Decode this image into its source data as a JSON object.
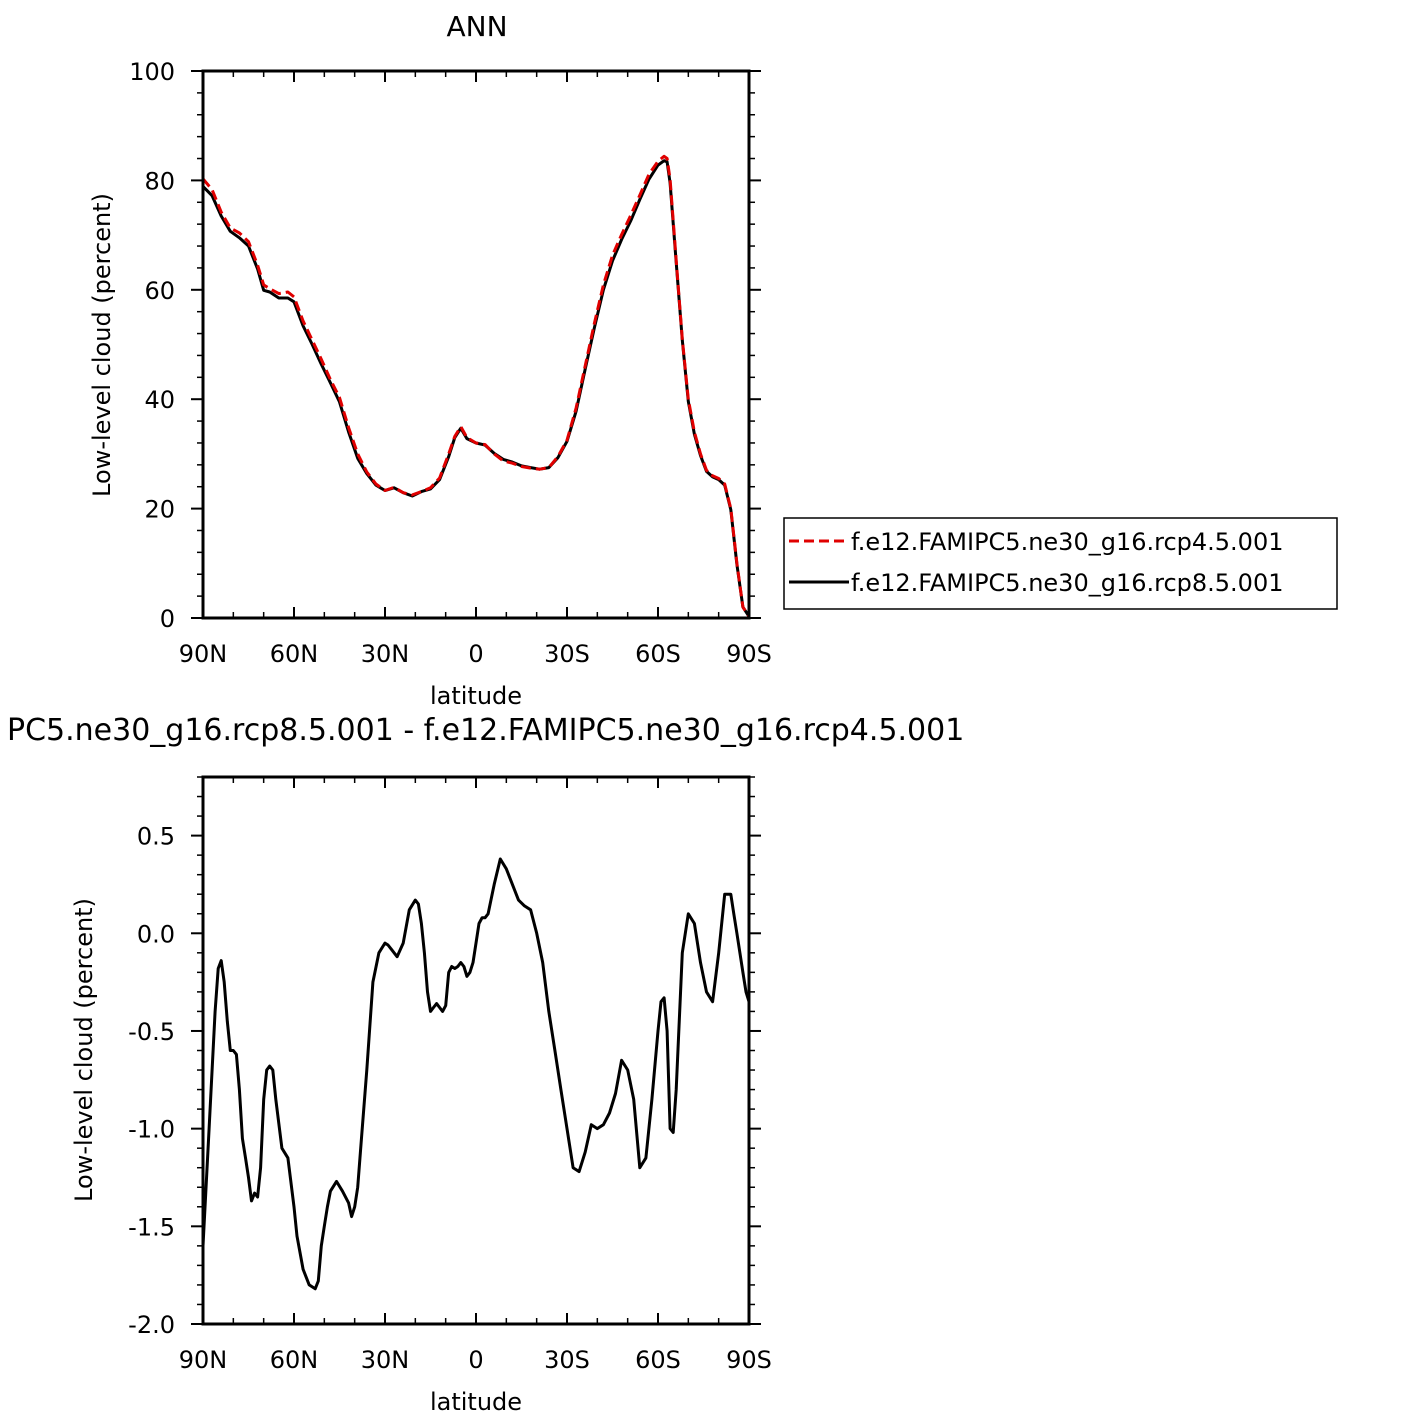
{
  "chart_data": [
    {
      "type": "line",
      "title": "ANN",
      "xlabel": "latitude",
      "ylabel": "Low-level cloud (percent)",
      "xlim": [
        90,
        -90
      ],
      "ylim": [
        0,
        100
      ],
      "x_ticks": [
        90,
        60,
        30,
        0,
        -30,
        -60,
        -90
      ],
      "x_tick_labels": [
        "90N",
        "60N",
        "30N",
        "0",
        "30S",
        "60S",
        "90S"
      ],
      "y_ticks": [
        0,
        20,
        40,
        60,
        80,
        100
      ],
      "y_tick_labels": [
        "0",
        "20",
        "40",
        "60",
        "80",
        "100"
      ],
      "legend_position": "right",
      "series": [
        {
          "name": "f.e12.FAMIPC5.ne30_g16.rcp4.5.001",
          "color": "#e00000",
          "dash": "dashed",
          "x": [
            90,
            87,
            84,
            81,
            78,
            75,
            72,
            70,
            68,
            65,
            62,
            60,
            57,
            54,
            51,
            48,
            45,
            42,
            39,
            36,
            33,
            30,
            27,
            24,
            21,
            18,
            15,
            12,
            9,
            7,
            5,
            3,
            0,
            -3,
            -6,
            -9,
            -12,
            -15,
            -18,
            -21,
            -24,
            -27,
            -30,
            -33,
            -36,
            -39,
            -42,
            -45,
            -48,
            -51,
            -54,
            -57,
            -60,
            -62,
            -63,
            -64,
            -66,
            -68,
            -70,
            -72,
            -74,
            -76,
            -78,
            -80,
            -82,
            -84,
            -86,
            -88,
            -90
          ],
          "y": [
            80.3,
            78.3,
            74.2,
            71.3,
            70.4,
            68.8,
            64.5,
            60.9,
            60.2,
            59.3,
            59.6,
            58.7,
            54.3,
            50.8,
            47.3,
            43.6,
            40.3,
            34.8,
            30.0,
            26.7,
            24.5,
            23.3,
            23.9,
            22.9,
            22.5,
            23.1,
            23.8,
            25.6,
            30.0,
            33.2,
            35.0,
            33.0,
            32.0,
            31.7,
            30.0,
            28.7,
            28.3,
            27.7,
            27.4,
            27.2,
            27.5,
            29.5,
            32.5,
            38.4,
            46.1,
            53.8,
            60.9,
            66.3,
            70.1,
            73.6,
            77.3,
            81.1,
            83.5,
            84.4,
            84.0,
            80.2,
            65.4,
            51.0,
            40.0,
            34.0,
            30.0,
            27.0,
            26.0,
            25.5,
            24.5,
            20.0,
            10.0,
            2.0,
            0.3
          ]
        },
        {
          "name": "f.e12.FAMIPC5.ne30_g16.rcp8.5.001",
          "color": "#000000",
          "dash": "solid",
          "x": [
            90,
            87,
            84,
            81,
            78,
            75,
            72,
            70,
            68,
            65,
            62,
            60,
            57,
            54,
            51,
            48,
            45,
            42,
            39,
            36,
            33,
            30,
            27,
            24,
            21,
            18,
            15,
            12,
            9,
            7,
            5,
            3,
            0,
            -3,
            -6,
            -9,
            -12,
            -15,
            -18,
            -21,
            -24,
            -27,
            -30,
            -33,
            -36,
            -39,
            -42,
            -45,
            -48,
            -51,
            -54,
            -57,
            -60,
            -62,
            -63,
            -64,
            -66,
            -68,
            -70,
            -72,
            -74,
            -76,
            -78,
            -80,
            -82,
            -84,
            -86,
            -88,
            -90
          ],
          "y": [
            78.9,
            77.2,
            73.5,
            70.7,
            69.5,
            68.0,
            63.8,
            59.9,
            59.6,
            58.5,
            58.5,
            57.8,
            53.4,
            50.0,
            46.4,
            43.0,
            39.5,
            34.0,
            29.2,
            26.4,
            24.3,
            23.3,
            23.8,
            22.9,
            22.3,
            23.1,
            23.6,
            25.3,
            29.5,
            33.0,
            34.7,
            32.8,
            32.0,
            31.6,
            30.1,
            29.0,
            28.5,
            27.8,
            27.5,
            27.2,
            27.5,
            29.3,
            32.3,
            37.8,
            45.5,
            53.0,
            60.0,
            65.3,
            69.2,
            72.6,
            76.5,
            80.2,
            82.8,
            83.6,
            83.4,
            79.5,
            65.0,
            50.8,
            39.6,
            33.6,
            29.7,
            26.8,
            25.8,
            25.3,
            24.3,
            19.8,
            9.8,
            2.0,
            0.3
          ]
        }
      ]
    },
    {
      "type": "line",
      "title": "PC5.ne30_g16.rcp8.5.001 - f.e12.FAMIPC5.ne30_g16.rcp4.5.001",
      "xlabel": "latitude",
      "ylabel": "Low-level cloud (percent)",
      "xlim": [
        90,
        -90
      ],
      "ylim": [
        -2.0,
        0.8
      ],
      "x_ticks": [
        90,
        60,
        30,
        0,
        -30,
        -60,
        -90
      ],
      "x_tick_labels": [
        "90N",
        "60N",
        "30N",
        "0",
        "30S",
        "60S",
        "90S"
      ],
      "y_ticks": [
        -2.0,
        -1.5,
        -1.0,
        -0.5,
        0.0,
        0.5
      ],
      "y_tick_labels": [
        "-2.0",
        "-1.5",
        "-1.0",
        "-0.5",
        "0.0",
        "0.5"
      ],
      "series": [
        {
          "color": "#000000",
          "dash": "solid",
          "x": [
            90,
            88,
            86,
            85,
            84,
            83,
            82,
            81,
            80,
            79,
            78,
            77,
            76,
            75,
            74,
            73,
            72,
            71,
            70,
            69,
            68,
            67,
            66,
            64,
            62,
            60,
            59,
            57,
            55,
            53,
            52,
            51,
            50,
            49,
            48,
            46,
            44,
            42,
            41,
            40,
            39,
            38,
            36,
            34,
            32,
            30,
            29,
            28,
            26,
            24,
            22,
            20,
            19,
            18,
            17,
            16,
            15,
            14,
            13,
            12,
            11,
            10,
            9,
            8,
            7,
            6,
            5,
            4,
            3,
            2,
            1,
            0,
            -1,
            -2,
            -3,
            -4,
            -6,
            -8,
            -10,
            -12,
            -14,
            -16,
            -18,
            -20,
            -22,
            -24,
            -26,
            -28,
            -30,
            -32,
            -34,
            -36,
            -38,
            -40,
            -42,
            -44,
            -46,
            -48,
            -50,
            -52,
            -54,
            -56,
            -58,
            -60,
            -61,
            -62,
            -63,
            -64,
            -65,
            -66,
            -68,
            -70,
            -72,
            -74,
            -76,
            -78,
            -80,
            -82,
            -84,
            -85,
            -86,
            -87,
            -88,
            -89,
            -90
          ],
          "y": [
            -1.6,
            -1.0,
            -0.4,
            -0.18,
            -0.14,
            -0.25,
            -0.45,
            -0.6,
            -0.6,
            -0.62,
            -0.8,
            -1.05,
            -1.15,
            -1.25,
            -1.37,
            -1.33,
            -1.35,
            -1.2,
            -0.85,
            -0.7,
            -0.68,
            -0.7,
            -0.85,
            -1.1,
            -1.15,
            -1.4,
            -1.55,
            -1.72,
            -1.8,
            -1.82,
            -1.78,
            -1.6,
            -1.5,
            -1.4,
            -1.32,
            -1.27,
            -1.32,
            -1.38,
            -1.45,
            -1.4,
            -1.3,
            -1.1,
            -0.7,
            -0.25,
            -0.1,
            -0.05,
            -0.06,
            -0.08,
            -0.12,
            -0.05,
            0.12,
            0.17,
            0.15,
            0.05,
            -0.1,
            -0.3,
            -0.4,
            -0.38,
            -0.36,
            -0.38,
            -0.4,
            -0.37,
            -0.2,
            -0.17,
            -0.18,
            -0.17,
            -0.15,
            -0.17,
            -0.22,
            -0.2,
            -0.15,
            -0.05,
            0.05,
            0.08,
            0.08,
            0.1,
            0.25,
            0.38,
            0.33,
            0.25,
            0.17,
            0.14,
            0.12,
            0.0,
            -0.15,
            -0.4,
            -0.6,
            -0.8,
            -1.0,
            -1.2,
            -1.22,
            -1.12,
            -0.98,
            -1.0,
            -0.98,
            -0.92,
            -0.82,
            -0.65,
            -0.7,
            -0.85,
            -1.2,
            -1.15,
            -0.85,
            -0.5,
            -0.35,
            -0.33,
            -0.5,
            -1.0,
            -1.02,
            -0.8,
            -0.1,
            0.1,
            0.05,
            -0.15,
            -0.3,
            -0.35,
            -0.1,
            0.2,
            0.2,
            0.1,
            0.0,
            -0.1,
            -0.2,
            -0.3,
            -0.35
          ]
        }
      ]
    }
  ]
}
